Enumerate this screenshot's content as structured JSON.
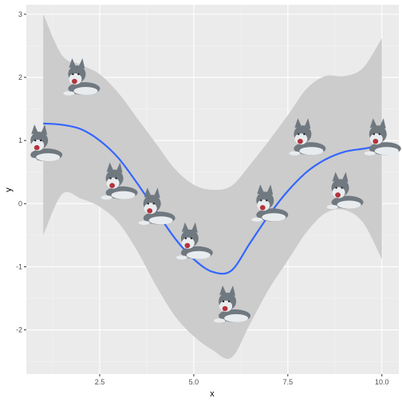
{
  "colors": {
    "panel": "#ebebeb",
    "grid_major": "#ffffff",
    "grid_minor": "#f4f4f4",
    "ribbon": "#cccccc",
    "line": "#3366ff",
    "fur_dark": "#707880",
    "fur_light": "#e9ecef",
    "mouth": "#b3343c"
  },
  "chart_data": {
    "type": "scatter",
    "title": "",
    "xlabel": "x",
    "ylabel": "y",
    "xlim": [
      0.55,
      10.45
    ],
    "ylim": [
      -2.7,
      3.15
    ],
    "x_ticks": [
      2.5,
      5.0,
      7.5,
      10.0
    ],
    "x_tick_labels": [
      "2.5",
      "5.0",
      "7.5",
      "10.0"
    ],
    "y_ticks": [
      -2,
      -1,
      0,
      1,
      2,
      3
    ],
    "y_tick_labels": [
      "-2",
      "-1",
      "0",
      "1",
      "2",
      "3"
    ],
    "grid": true,
    "marker": "husky-dog-image",
    "points": [
      {
        "x": 1,
        "y": 0.95
      },
      {
        "x": 2,
        "y": 2.0
      },
      {
        "x": 3,
        "y": 0.35
      },
      {
        "x": 4,
        "y": -0.05
      },
      {
        "x": 5,
        "y": -0.6
      },
      {
        "x": 6,
        "y": -1.6
      },
      {
        "x": 7,
        "y": 0.0
      },
      {
        "x": 8,
        "y": 1.05
      },
      {
        "x": 9,
        "y": 0.2
      },
      {
        "x": 10,
        "y": 1.05
      }
    ],
    "smooth": {
      "method": "loess",
      "x": [
        1.0,
        1.5,
        2.0,
        2.5,
        3.0,
        3.5,
        4.0,
        4.5,
        5.0,
        5.5,
        6.0,
        6.5,
        7.0,
        7.5,
        8.0,
        8.5,
        9.0,
        9.5,
        10.0
      ],
      "y": [
        1.27,
        1.25,
        1.18,
        1.0,
        0.72,
        0.32,
        -0.12,
        -0.55,
        -0.88,
        -1.08,
        -1.06,
        -0.62,
        -0.18,
        0.2,
        0.5,
        0.7,
        0.82,
        0.87,
        0.92
      ],
      "lower": [
        -0.5,
        0.15,
        0.08,
        -0.05,
        -0.3,
        -0.75,
        -1.3,
        -1.78,
        -2.1,
        -2.32,
        -2.44,
        -1.9,
        -1.35,
        -0.9,
        -0.45,
        -0.15,
        -0.1,
        -0.3,
        -0.88
      ],
      "upper": [
        3.0,
        2.35,
        2.2,
        2.05,
        1.75,
        1.35,
        0.95,
        0.55,
        0.3,
        0.22,
        0.28,
        0.62,
        1.0,
        1.4,
        1.82,
        2.02,
        2.02,
        2.15,
        2.62
      ]
    }
  }
}
